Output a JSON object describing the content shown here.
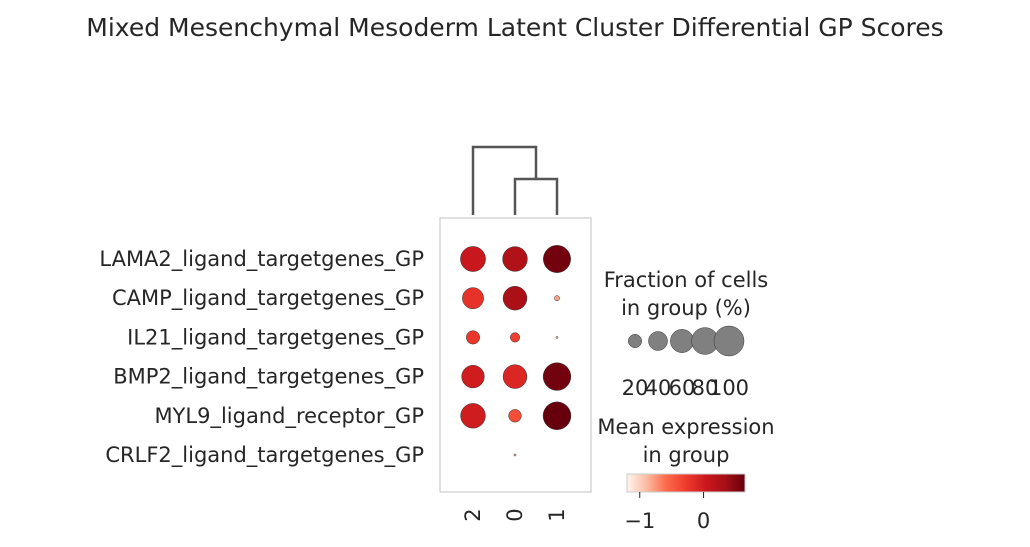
{
  "chart_data": {
    "type": "dotplot",
    "title": "Mixed Mesenchymal Mesoderm Latent Cluster Differential GP Scores",
    "groups": [
      "2",
      "0",
      "1"
    ],
    "features": [
      "LAMA2_ligand_targetgenes_GP",
      "CAMP_ligand_targetgenes_GP",
      "IL21_ligand_targetgenes_GP",
      "BMP2_ligand_targetgenes_GP",
      "MYL9_ligand_receptor_GP",
      "CRLF2_ligand_targetgenes_GP"
    ],
    "fraction": [
      [
        70,
        68,
        83
      ],
      [
        50,
        63,
        3
      ],
      [
        20,
        10,
        0.5
      ],
      [
        57,
        63,
        85
      ],
      [
        68,
        18,
        86
      ],
      [
        0,
        0.5,
        0
      ]
    ],
    "mean_expression": [
      [
        0.05,
        0.25,
        0.6
      ],
      [
        -0.2,
        0.3,
        -0.8
      ],
      [
        -0.25,
        -0.3,
        -0.9
      ],
      [
        0.0,
        -0.1,
        0.6
      ],
      [
        0.0,
        -0.4,
        0.65
      ],
      [
        0,
        -0.9,
        0
      ]
    ],
    "dendrogram": {
      "order": [
        "2",
        "0",
        "1"
      ],
      "merges": [
        [
          "0",
          "1"
        ],
        [
          "2",
          "0+1"
        ]
      ]
    },
    "size_legend": {
      "title_line1": "Fraction of cells",
      "title_line2": "in group (%)",
      "values": [
        "20",
        "40",
        "60",
        "80",
        "100"
      ]
    },
    "color_legend": {
      "title_line1": "Mean expression",
      "title_line2": "in group",
      "ticks": [
        "−1",
        "0"
      ],
      "vmin": -1.2,
      "vmax": 0.65,
      "colormap": "Reds",
      "colors": [
        "#fff5f0",
        "#fcbba1",
        "#fb6a4a",
        "#ef3b2c",
        "#cb181d",
        "#a50f15",
        "#67000d"
      ]
    }
  }
}
